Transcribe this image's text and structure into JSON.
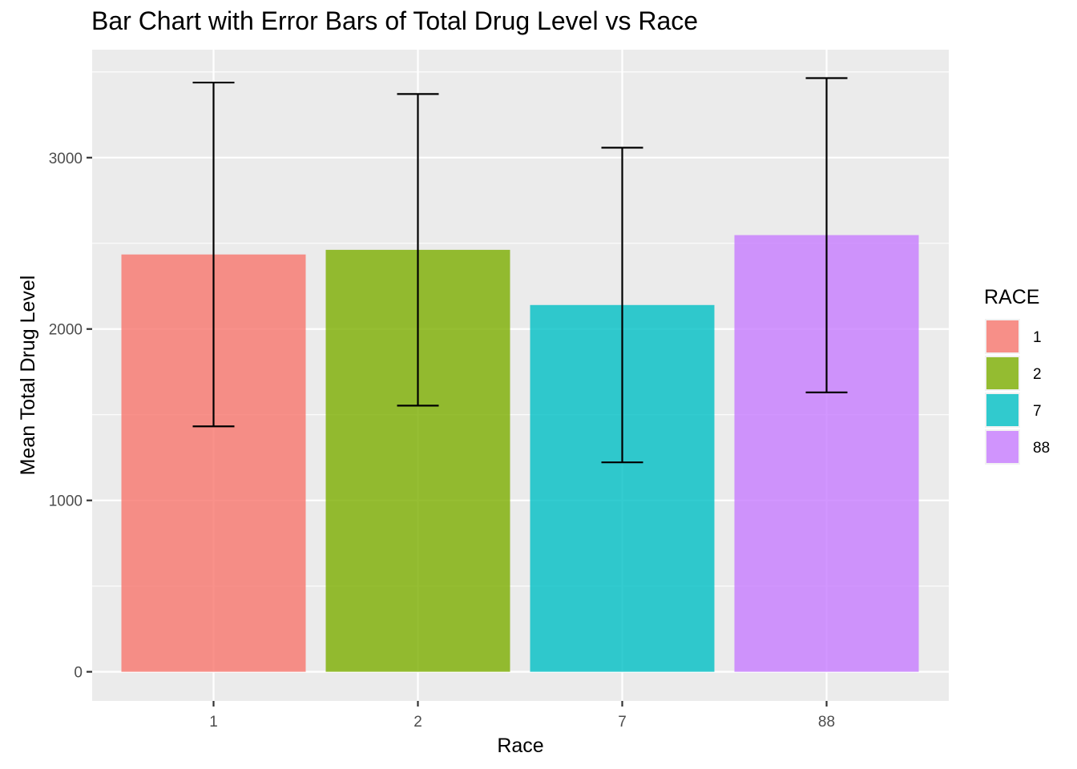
{
  "chart_data": {
    "type": "bar",
    "title": "Bar Chart with Error Bars of Total Drug Level vs Race",
    "xlabel": "Race",
    "ylabel": "Mean Total Drug Level",
    "categories": [
      "1",
      "2",
      "7",
      "88"
    ],
    "values": [
      2435,
      2462,
      2140,
      2548
    ],
    "error_lower": [
      1432,
      1553,
      1222,
      1630
    ],
    "error_upper": [
      3438,
      3371,
      3058,
      3464
    ],
    "colors": [
      "#F8766D",
      "#7CAE00",
      "#00BFC4",
      "#C77CFF"
    ],
    "yticks": [
      0,
      1000,
      2000,
      3000
    ],
    "ytick_labels": [
      "0",
      "1000",
      "2000",
      "3000"
    ],
    "ylim": [
      -170,
      3630
    ],
    "grid": true,
    "legend": {
      "title": "RACE",
      "position": "right",
      "entries": [
        "1",
        "2",
        "7",
        "88"
      ]
    }
  }
}
